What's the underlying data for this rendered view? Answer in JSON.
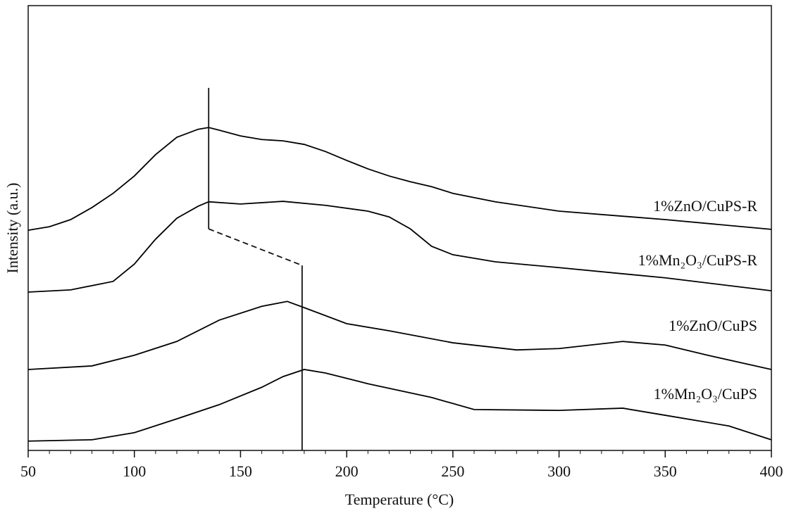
{
  "chart_data": {
    "type": "line",
    "xlabel": "Temperature (°C)",
    "ylabel": "Intensity (a.u.)",
    "xlim": [
      50,
      400
    ],
    "xticks": [
      50,
      100,
      150,
      200,
      250,
      300,
      350,
      400
    ],
    "xminor_step": 10,
    "ylim": [
      0,
      100
    ],
    "color": "#000000",
    "series": [
      {
        "name": "1%ZnO/CuPS-R",
        "color": "#000000",
        "x": [
          50,
          60,
          70,
          80,
          90,
          100,
          110,
          120,
          130,
          135,
          140,
          150,
          160,
          170,
          180,
          190,
          200,
          210,
          220,
          230,
          240,
          250,
          270,
          300,
          350,
          400
        ],
        "values": [
          49.5,
          50.3,
          51.9,
          54.6,
          57.8,
          61.7,
          66.5,
          70.4,
          72.2,
          72.6,
          72.0,
          70.7,
          69.9,
          69.6,
          68.8,
          67.2,
          65.2,
          63.3,
          61.7,
          60.4,
          59.3,
          57.8,
          55.9,
          53.8,
          51.9,
          49.7
        ]
      },
      {
        "name": "1%Mn₂O₃/CuPS-R",
        "color": "#000000",
        "x": [
          50,
          70,
          90,
          100,
          110,
          120,
          130,
          135,
          150,
          170,
          190,
          210,
          220,
          230,
          240,
          250,
          270,
          300,
          350,
          400
        ],
        "values": [
          35.6,
          36.1,
          38.0,
          41.9,
          47.5,
          52.2,
          54.9,
          55.9,
          55.4,
          56.0,
          55.1,
          53.8,
          52.5,
          49.8,
          45.9,
          44.0,
          42.4,
          41.1,
          38.8,
          35.9
        ]
      },
      {
        "name": "1%ZnO/CuPS",
        "color": "#000000",
        "x": [
          50,
          80,
          100,
          120,
          140,
          160,
          172,
          180,
          200,
          220,
          250,
          280,
          300,
          330,
          350,
          370,
          400
        ],
        "values": [
          18.2,
          19.0,
          21.4,
          24.5,
          29.3,
          32.4,
          33.5,
          32.1,
          28.5,
          26.9,
          24.2,
          22.6,
          22.9,
          24.5,
          23.7,
          21.4,
          18.2
        ]
      },
      {
        "name": "1%Mn₂O₃/CuPS",
        "color": "#000000",
        "x": [
          50,
          80,
          100,
          120,
          140,
          160,
          170,
          180,
          190,
          210,
          240,
          260,
          300,
          330,
          350,
          380,
          400
        ],
        "values": [
          2.1,
          2.4,
          4.0,
          7.1,
          10.3,
          14.2,
          16.6,
          18.2,
          17.4,
          15.0,
          11.9,
          9.2,
          9.0,
          9.5,
          7.9,
          5.5,
          2.4
        ]
      }
    ],
    "peak_lines": [
      {
        "x": 135,
        "y": [
          49.8,
          81.5
        ]
      },
      {
        "x": 179,
        "y": [
          0,
          41.6
        ]
      }
    ]
  }
}
